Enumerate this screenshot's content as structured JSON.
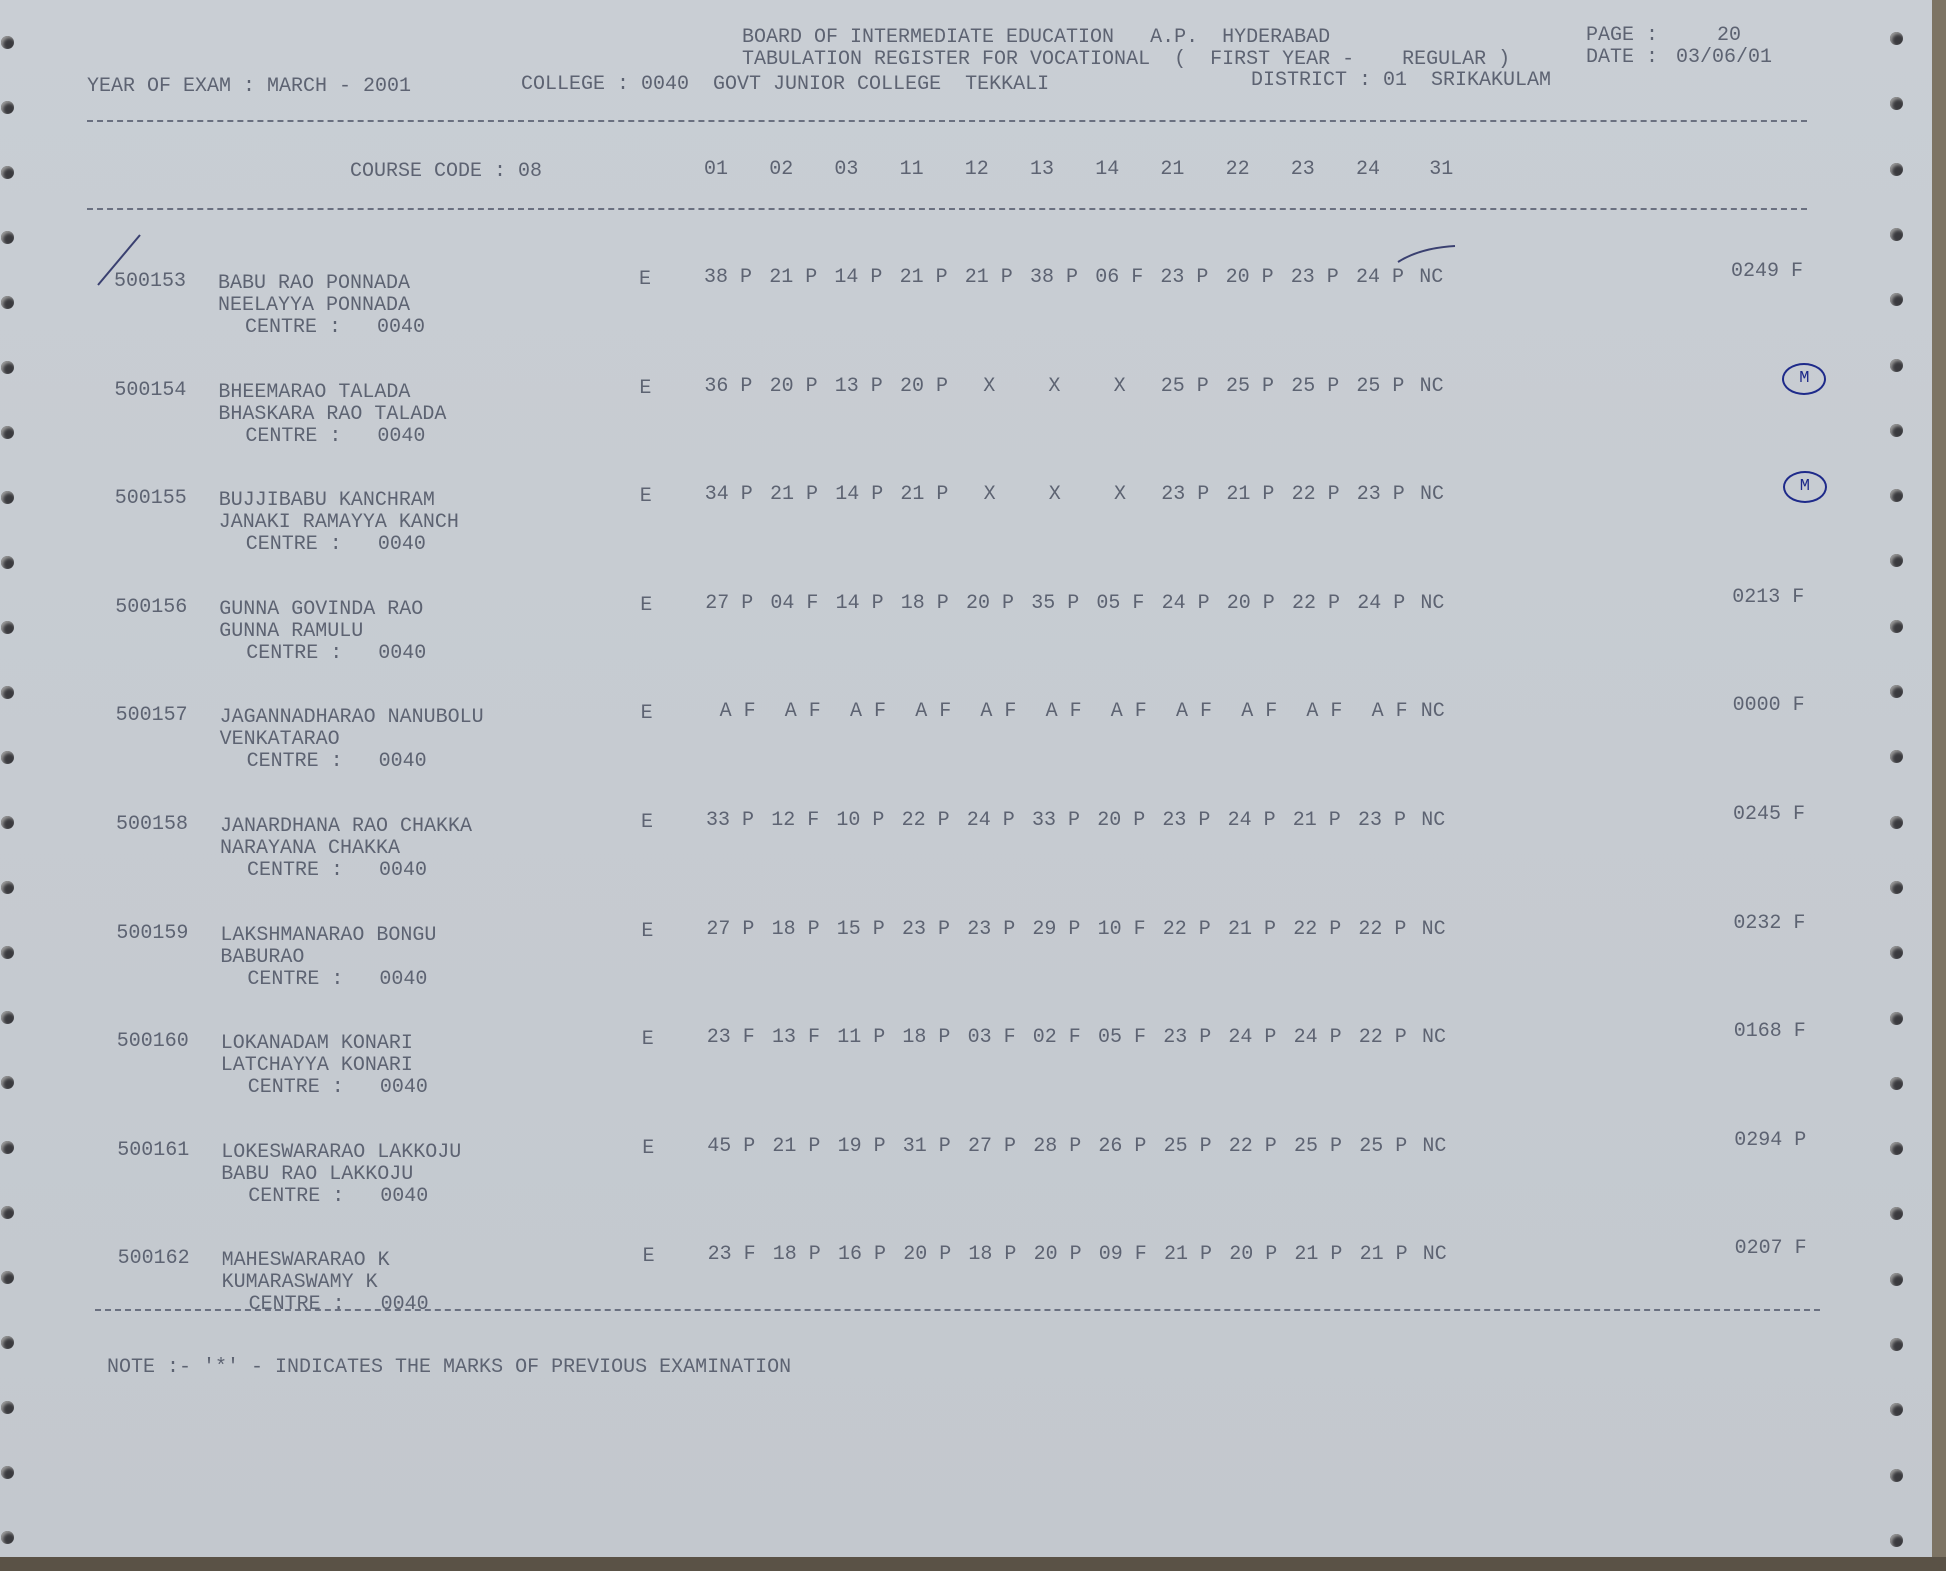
{
  "header": {
    "board": "BOARD OF INTERMEDIATE EDUCATION   A.P.  HYDERABAD",
    "register": "TABULATION REGISTER FOR VOCATIONAL  (  FIRST YEAR -    REGULAR )",
    "page_label": "PAGE :",
    "page_number": "20",
    "date_label": "DATE :",
    "date": "03/06/01",
    "year_of_exam": "YEAR OF EXAM : MARCH - 2001",
    "college": "COLLEGE : 0040  GOVT JUNIOR COLLEGE  TEKKALI",
    "district": "DISTRICT : 01  SRIKAKULAM"
  },
  "course": {
    "label": "COURSE CODE : 08",
    "columns": [
      "01",
      "02",
      "03",
      "11",
      "12",
      "13",
      "14",
      "21",
      "22",
      "23",
      "24",
      "31"
    ]
  },
  "rows": [
    {
      "id": "500153",
      "name": "BABU RAO PONNADA",
      "parent": "NEELAYYA PONNADA",
      "centre": "CENTRE :   0040",
      "medium": "E",
      "marks": [
        "38 P",
        "21 P",
        "14 P",
        "21 P",
        "21 P",
        "38 P",
        "06 F",
        "23 P",
        "20 P",
        "23 P",
        "24 P",
        "NC"
      ],
      "total": "0249 F",
      "annotation": ""
    },
    {
      "id": "500154",
      "name": "BHEEMARAO TALADA",
      "parent": "BHASKARA RAO TALADA",
      "centre": "CENTRE :   0040",
      "medium": "E",
      "marks": [
        "36 P",
        "20 P",
        "13 P",
        "20 P",
        "X",
        "X",
        "X",
        "25 P",
        "25 P",
        "25 P",
        "25 P",
        "NC"
      ],
      "total": "",
      "annotation": "M"
    },
    {
      "id": "500155",
      "name": "BUJJIBABU KANCHRAM",
      "parent": "JANAKI RAMAYYA KANCH",
      "centre": "CENTRE :   0040",
      "medium": "E",
      "marks": [
        "34 P",
        "21 P",
        "14 P",
        "21 P",
        "X",
        "X",
        "X",
        "23 P",
        "21 P",
        "22 P",
        "23 P",
        "NC"
      ],
      "total": "",
      "annotation": "M"
    },
    {
      "id": "500156",
      "name": "GUNNA GOVINDA RAO",
      "parent": "GUNNA RAMULU",
      "centre": "CENTRE :   0040",
      "medium": "E",
      "marks": [
        "27 P",
        "04 F",
        "14 P",
        "18 P",
        "20 P",
        "35 P",
        "05 F",
        "24 P",
        "20 P",
        "22 P",
        "24 P",
        "NC"
      ],
      "total": "0213 F",
      "annotation": ""
    },
    {
      "id": "500157",
      "name": "JAGANNADHARAO NANUBOLU",
      "parent": "VENKATARAO",
      "centre": "CENTRE :   0040",
      "medium": "E",
      "marks": [
        "A F",
        "A F",
        "A F",
        "A F",
        "A F",
        "A F",
        "A F",
        "A F",
        "A F",
        "A F",
        "A F",
        "NC"
      ],
      "total": "0000 F",
      "annotation": ""
    },
    {
      "id": "500158",
      "name": "JANARDHANA RAO CHAKKA",
      "parent": "NARAYANA CHAKKA",
      "centre": "CENTRE :   0040",
      "medium": "E",
      "marks": [
        "33 P",
        "12 F",
        "10 P",
        "22 P",
        "24 P",
        "33 P",
        "20 P",
        "23 P",
        "24 P",
        "21 P",
        "23 P",
        "NC"
      ],
      "total": "0245 F",
      "annotation": ""
    },
    {
      "id": "500159",
      "name": "LAKSHMANARAO BONGU",
      "parent": "BABURAO",
      "centre": "CENTRE :   0040",
      "medium": "E",
      "marks": [
        "27 P",
        "18 P",
        "15 P",
        "23 P",
        "23 P",
        "29 P",
        "10 F",
        "22 P",
        "21 P",
        "22 P",
        "22 P",
        "NC"
      ],
      "total": "0232 F",
      "annotation": ""
    },
    {
      "id": "500160",
      "name": "LOKANADAM KONARI",
      "parent": "LATCHAYYA KONARI",
      "centre": "CENTRE :   0040",
      "medium": "E",
      "marks": [
        "23 F",
        "13 F",
        "11 P",
        "18 P",
        "03 F",
        "02 F",
        "05 F",
        "23 P",
        "24 P",
        "24 P",
        "22 P",
        "NC"
      ],
      "total": "0168 F",
      "annotation": ""
    },
    {
      "id": "500161",
      "name": "LOKESWARARAO LAKKOJU",
      "parent": "BABU RAO LAKKOJU",
      "centre": "CENTRE :   0040",
      "medium": "E",
      "marks": [
        "45 P",
        "21 P",
        "19 P",
        "31 P",
        "27 P",
        "28 P",
        "26 P",
        "25 P",
        "22 P",
        "25 P",
        "25 P",
        "NC"
      ],
      "total": "0294 P",
      "annotation": ""
    },
    {
      "id": "500162",
      "name": "MAHESWARARAO K",
      "parent": "KUMARASWAMY K",
      "centre": "CENTRE :   0040",
      "medium": "E",
      "marks": [
        "23 F",
        "18 P",
        "16 P",
        "20 P",
        "18 P",
        "20 P",
        "09 F",
        "21 P",
        "20 P",
        "21 P",
        "21 P",
        "NC"
      ],
      "total": "0207 F",
      "annotation": ""
    }
  ],
  "note": "NOTE :- '*' - INDICATES THE MARKS OF PREVIOUS EXAMINATION",
  "colors": {
    "paper": "#c8cdd3",
    "print": "#5d6372",
    "ink": "#1e2a8a"
  }
}
